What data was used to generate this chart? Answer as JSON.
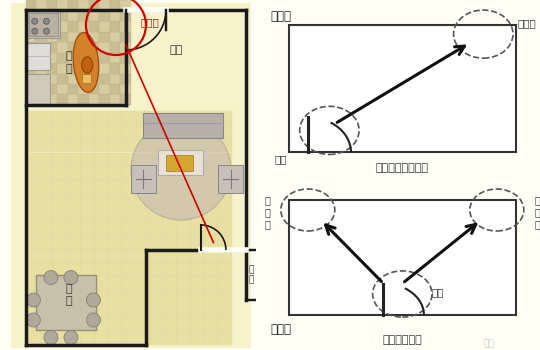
{
  "bg_color": "#fffff5",
  "title1": "图一：",
  "title2": "图二：",
  "label_mingcaiwei": "明财位",
  "label_dongwei": "动位",
  "label_caption1": "户门在房间一角时",
  "label_caption2": "户门在中间时",
  "label_mingcaiwei2_left": "明\n财\n位",
  "label_mingcaiwei2_right": "明\n财\n位",
  "label_dongwei2": "动位",
  "label_ketang": "客厅",
  "label_chufang": "厨\n房",
  "label_canting": "餐\n厅",
  "label_ruhuo": "入\n户",
  "floor_plan_bg": "#f7f2cc",
  "wall_color": "#1a1a1a",
  "tile_light": "#e8dfa0",
  "tile_dark": "#cec090",
  "grid_color": "#e0d8a8",
  "arrow_color": "#111111",
  "circle_color": "#555555",
  "red_circle_color": "#cc0000",
  "red_line_color": "#cc0000",
  "mingcaiwei_text_color": "#cc0000",
  "watermark": "灵囿",
  "sofa_color": "#b8b0a8",
  "rug_color": "#c0b8b8",
  "table_color": "#c8c0b0",
  "orange_color": "#d4822a",
  "kitchen_tile1": "#d8cca0",
  "kitchen_tile2": "#c8bc90"
}
